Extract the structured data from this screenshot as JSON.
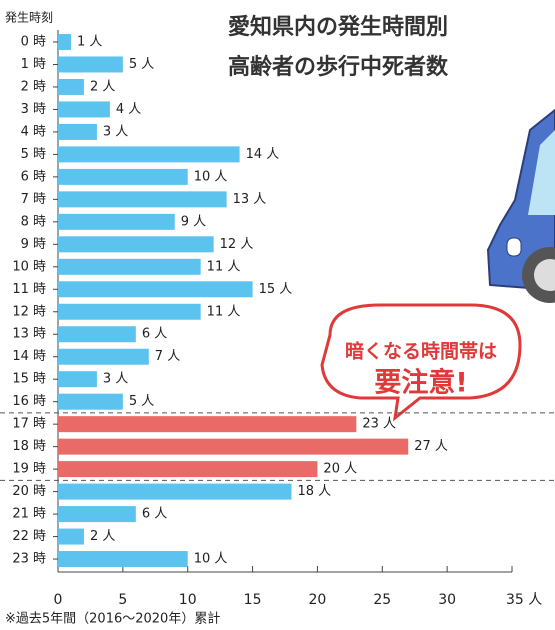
{
  "chart_data": {
    "type": "barh",
    "title_lines": [
      "愛知県内の発生時間別",
      "高齢者の歩行中死者数"
    ],
    "y_label": "発生時刻",
    "categories": [
      "0 時",
      "1 時",
      "2 時",
      "3 時",
      "4 時",
      "5 時",
      "6 時",
      "7 時",
      "8 時",
      "9 時",
      "10 時",
      "11 時",
      "12 時",
      "13 時",
      "14 時",
      "15 時",
      "16 時",
      "17 時",
      "18 時",
      "19 時",
      "20 時",
      "21 時",
      "22 時",
      "23 時"
    ],
    "values": [
      1,
      5,
      2,
      4,
      3,
      14,
      10,
      13,
      9,
      12,
      11,
      15,
      11,
      6,
      7,
      3,
      5,
      23,
      27,
      20,
      18,
      6,
      2,
      10
    ],
    "value_labels": [
      "1 人",
      "5 人",
      "2 人",
      "4 人",
      "3 人",
      "14 人",
      "10 人",
      "13 人",
      "9 人",
      "12 人",
      "11 人",
      "15 人",
      "11 人",
      "6 人",
      "7 人",
      "3 人",
      "5 人",
      "23 人",
      "27 人",
      "20 人",
      "18 人",
      "6 人",
      "2 人",
      "10 人"
    ],
    "colors": [
      "#5bc3ee",
      "#5bc3ee",
      "#5bc3ee",
      "#5bc3ee",
      "#5bc3ee",
      "#5bc3ee",
      "#5bc3ee",
      "#5bc3ee",
      "#5bc3ee",
      "#5bc3ee",
      "#5bc3ee",
      "#5bc3ee",
      "#5bc3ee",
      "#5bc3ee",
      "#5bc3ee",
      "#5bc3ee",
      "#5bc3ee",
      "#e96a66",
      "#e96a66",
      "#e96a66",
      "#5bc3ee",
      "#5bc3ee",
      "#5bc3ee",
      "#5bc3ee"
    ],
    "xlim": [
      0,
      35
    ],
    "xticks": [
      0,
      5,
      10,
      15,
      20,
      25,
      30,
      {
        "value": 35,
        "label": "35 人"
      }
    ],
    "callout": [
      "暗くなる時間帯は",
      "要注意!"
    ],
    "footnote": "※過去5年間（2016〜2020年）累計"
  }
}
